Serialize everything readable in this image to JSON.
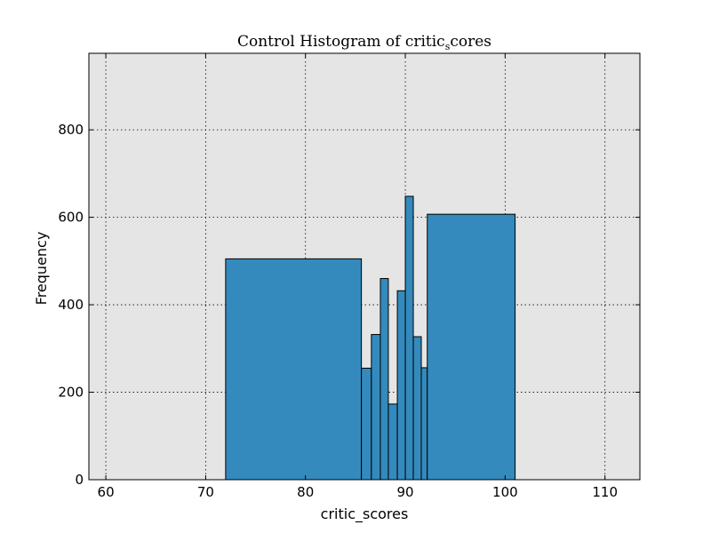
{
  "chart_data": {
    "type": "bar",
    "title_main": "Control Histogram of critic",
    "title_sub": "s",
    "title_tail": "cores",
    "xlabel": "critic_scores",
    "ylabel": "Frequency",
    "xlim": [
      58.3,
      113.5
    ],
    "ylim": [
      0,
      975
    ],
    "xticks": [
      60,
      70,
      80,
      90,
      100,
      110
    ],
    "yticks": [
      0,
      200,
      400,
      600,
      800
    ],
    "grid": true,
    "background": "#e5e5e5",
    "bar_color": "#348abd",
    "edge_color": "#000000",
    "bins": [
      {
        "start": 72.0,
        "end": 85.6,
        "count": 505
      },
      {
        "start": 85.6,
        "end": 86.6,
        "count": 255
      },
      {
        "start": 86.6,
        "end": 87.5,
        "count": 332
      },
      {
        "start": 87.5,
        "end": 88.3,
        "count": 460
      },
      {
        "start": 88.3,
        "end": 89.2,
        "count": 173
      },
      {
        "start": 89.2,
        "end": 90.0,
        "count": 432
      },
      {
        "start": 90.0,
        "end": 90.8,
        "count": 648
      },
      {
        "start": 90.8,
        "end": 91.6,
        "count": 327
      },
      {
        "start": 91.6,
        "end": 92.2,
        "count": 256
      },
      {
        "start": 92.2,
        "end": 101.0,
        "count": 607
      }
    ]
  }
}
